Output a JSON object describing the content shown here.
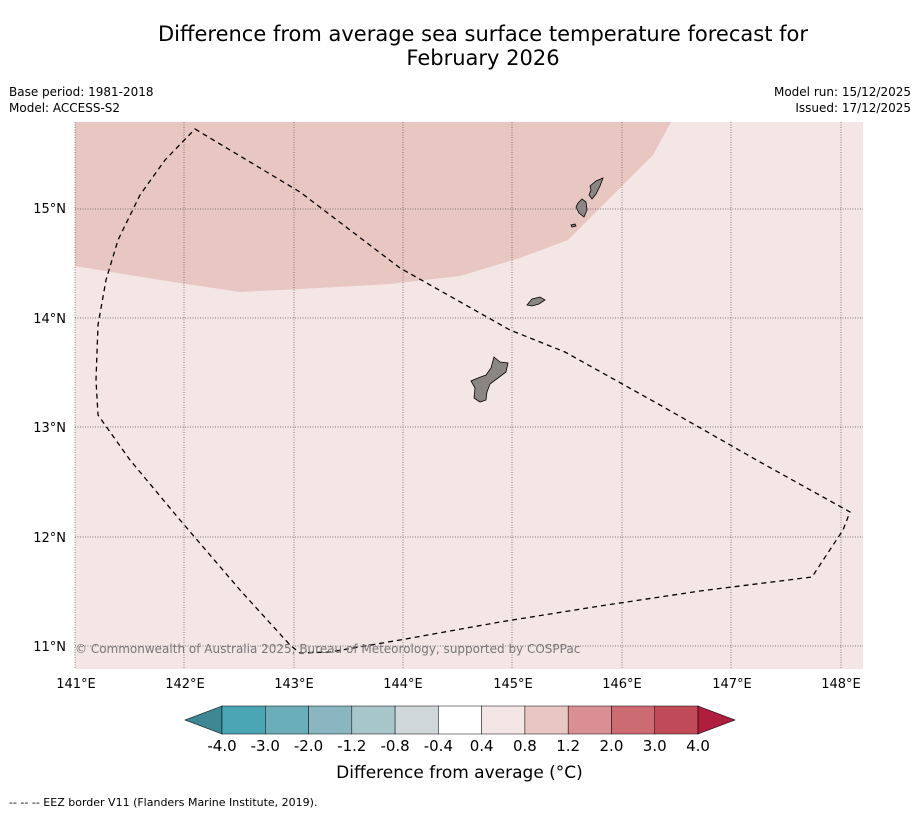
{
  "title_line1": "Difference from average sea surface temperature forecast for",
  "title_line2": "February 2026",
  "base_period": "Base period: 1981-2018",
  "model": "Model: ACCESS-S2",
  "model_run": "Model run: 15/12/2025",
  "issued": "Issued: 17/12/2025",
  "copyright": "© Commonwealth of Australia 2025, Bureau of Meteorology, supported by COSPPac",
  "lat_labels": [
    "15°N",
    "14°N",
    "13°N",
    "12°N",
    "11°N"
  ],
  "lon_labels": [
    "141°E",
    "142°E",
    "143°E",
    "144°E",
    "145°E",
    "146°E",
    "147°E",
    "148°E"
  ],
  "colorbar": {
    "title": "Difference from average (°C)",
    "tick_labels": [
      "-4.0",
      "-3.0",
      "-2.0",
      "-1.2",
      "-0.8",
      "-0.4",
      "0.4",
      "0.8",
      "1.2",
      "2.0",
      "3.0",
      "4.0"
    ],
    "colors": [
      "#4aa5b5",
      "#6aaeba",
      "#89b6c0",
      "#a7c6ca",
      "#d0d7da",
      "#ffffff",
      "#f5e6e6",
      "#e8c6c2",
      "#d98f94",
      "#cd6b73",
      "#c14a58"
    ],
    "under_color": "#3e8795",
    "over_color": "#b01d3f"
  },
  "map_fill": {
    "base_color": "#f4e6e5",
    "warm_color": "#e8c6c2",
    "land_color": "#8a8683"
  },
  "footer": "-- -- -- EEZ border V11 (Flanders Marine Institute, 2019)."
}
